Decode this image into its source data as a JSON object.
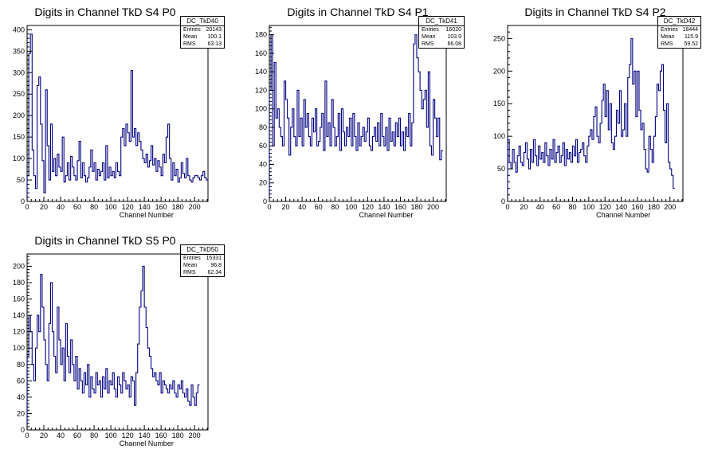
{
  "chart_data": [
    {
      "type": "histogram",
      "title": "Digits in Channel TkD S4 P0",
      "xlabel": "Channel Number",
      "ylabel": "",
      "xlim": [
        0,
        216
      ],
      "ylim": [
        0,
        410
      ],
      "xticks": [
        0,
        20,
        40,
        60,
        80,
        100,
        120,
        140,
        160,
        180,
        200
      ],
      "yticks": [
        0,
        50,
        100,
        150,
        200,
        250,
        300,
        350,
        400
      ],
      "stats": {
        "name": "DC_TkD40",
        "rows": [
          [
            "Entries",
            "20143"
          ],
          [
            "Mean",
            "100.1"
          ],
          [
            "RMS",
            "63.13"
          ]
        ]
      },
      "bin_width": 2,
      "values": [
        60,
        345,
        390,
        120,
        60,
        30,
        270,
        290,
        180,
        95,
        20,
        260,
        130,
        50,
        180,
        70,
        100,
        60,
        110,
        80,
        70,
        150,
        45,
        60,
        90,
        50,
        105,
        80,
        60,
        50,
        95,
        140,
        55,
        90,
        60,
        45,
        55,
        80,
        120,
        70,
        90,
        50,
        75,
        60,
        70,
        90,
        50,
        130,
        55,
        80,
        60,
        70,
        55,
        90,
        70,
        60,
        150,
        170,
        130,
        180,
        160,
        140,
        305,
        150,
        170,
        130,
        160,
        140,
        120,
        100,
        90,
        110,
        80,
        95,
        130,
        85,
        100,
        70,
        95,
        80,
        60,
        110,
        90,
        150,
        180,
        100,
        50,
        90,
        60,
        75,
        45,
        55,
        90,
        65,
        55,
        100,
        60,
        50,
        45,
        55,
        60,
        60,
        55,
        50,
        60,
        70,
        55,
        50
      ]
    },
    {
      "type": "histogram",
      "title": "Digits in Channel TkD S4 P1",
      "xlabel": "Channel Number",
      "ylabel": "",
      "xlim": [
        0,
        216
      ],
      "ylim": [
        0,
        190
      ],
      "xticks": [
        0,
        20,
        40,
        60,
        80,
        100,
        120,
        140,
        160,
        180,
        200
      ],
      "yticks": [
        0,
        20,
        40,
        60,
        80,
        100,
        120,
        140,
        160,
        180
      ],
      "stats": {
        "name": "DC_TkD41",
        "rows": [
          [
            "Entries",
            "16020"
          ],
          [
            "Mean",
            "103.9"
          ],
          [
            "RMS",
            "66.08"
          ]
        ]
      },
      "bin_width": 2,
      "values": [
        120,
        180,
        60,
        150,
        90,
        100,
        80,
        70,
        60,
        130,
        110,
        90,
        50,
        80,
        100,
        70,
        60,
        120,
        70,
        90,
        60,
        110,
        80,
        95,
        70,
        60,
        90,
        75,
        100,
        60,
        65,
        80,
        95,
        55,
        130,
        70,
        85,
        60,
        110,
        80,
        60,
        70,
        95,
        55,
        100,
        75,
        60,
        80,
        70,
        90,
        60,
        95,
        70,
        55,
        85,
        60,
        70,
        80,
        65,
        75,
        90,
        60,
        55,
        70,
        80,
        65,
        85,
        60,
        95,
        70,
        60,
        80,
        55,
        90,
        65,
        75,
        60,
        85,
        70,
        90,
        60,
        75,
        55,
        80,
        70,
        95,
        60,
        85,
        170,
        180,
        155,
        140,
        120,
        100,
        110,
        120,
        80,
        140,
        60,
        50,
        110,
        90,
        70,
        90,
        45,
        55
      ]
    },
    {
      "type": "histogram",
      "title": "Digits in Channel TkD S4 P2",
      "xlabel": "Channel Number",
      "ylabel": "",
      "xlim": [
        0,
        216
      ],
      "ylim": [
        0,
        270
      ],
      "xticks": [
        0,
        20,
        40,
        60,
        80,
        100,
        120,
        140,
        160,
        180,
        200
      ],
      "yticks": [
        0,
        50,
        100,
        150,
        200,
        250
      ],
      "stats": {
        "name": "DC_TkD42",
        "rows": [
          [
            "Entries",
            "18444"
          ],
          [
            "Mean",
            "115.9"
          ],
          [
            "RMS",
            "59.52"
          ]
        ]
      },
      "bin_width": 2,
      "values": [
        95,
        60,
        50,
        80,
        60,
        45,
        70,
        85,
        60,
        55,
        75,
        90,
        65,
        50,
        80,
        60,
        95,
        70,
        55,
        85,
        65,
        75,
        60,
        90,
        70,
        55,
        80,
        65,
        95,
        60,
        75,
        85,
        60,
        70,
        90,
        55,
        80,
        65,
        75,
        60,
        85,
        70,
        95,
        60,
        75,
        80,
        90,
        70,
        60,
        85,
        100,
        110,
        95,
        130,
        145,
        100,
        90,
        120,
        155,
        180,
        130,
        170,
        110,
        150,
        90,
        80,
        100,
        140,
        120,
        170,
        100,
        110,
        150,
        100,
        190,
        210,
        250,
        180,
        200,
        130,
        200,
        140,
        110,
        120,
        80,
        50,
        45,
        100,
        80,
        60,
        100,
        130,
        180,
        170,
        200,
        210,
        140,
        90,
        150,
        60,
        50,
        40,
        20
      ]
    },
    {
      "type": "histogram",
      "title": "Digits in Channel TkD S5 P0",
      "xlabel": "Channel Number",
      "ylabel": "",
      "xlim": [
        0,
        216
      ],
      "ylim": [
        0,
        215
      ],
      "xticks": [
        0,
        20,
        40,
        60,
        80,
        100,
        120,
        140,
        160,
        180,
        200
      ],
      "yticks": [
        0,
        20,
        40,
        60,
        80,
        100,
        120,
        140,
        160,
        180,
        200
      ],
      "stats": {
        "name": "DC_TkD50",
        "rows": [
          [
            "Entries",
            "15331"
          ],
          [
            "Mean",
            "96.8"
          ],
          [
            "RMS",
            "62.34"
          ]
        ]
      },
      "bin_width": 2,
      "values": [
        90,
        140,
        120,
        80,
        60,
        100,
        140,
        120,
        190,
        150,
        110,
        80,
        60,
        130,
        180,
        120,
        90,
        70,
        150,
        110,
        80,
        100,
        60,
        130,
        90,
        70,
        110,
        80,
        60,
        90,
        50,
        75,
        60,
        45,
        70,
        55,
        80,
        40,
        65,
        50,
        45,
        70,
        55,
        60,
        40,
        65,
        50,
        75,
        45,
        60,
        55,
        70,
        50,
        40,
        65,
        55,
        45,
        70,
        60,
        50,
        55,
        40,
        65,
        60,
        30,
        70,
        105,
        150,
        170,
        200,
        150,
        125,
        100,
        90,
        75,
        65,
        70,
        60,
        55,
        70,
        45,
        60,
        55,
        50,
        45,
        55,
        50,
        60,
        45,
        40,
        55,
        50,
        60,
        45,
        40,
        50,
        35,
        30,
        55,
        40,
        30,
        45,
        55
      ]
    }
  ]
}
